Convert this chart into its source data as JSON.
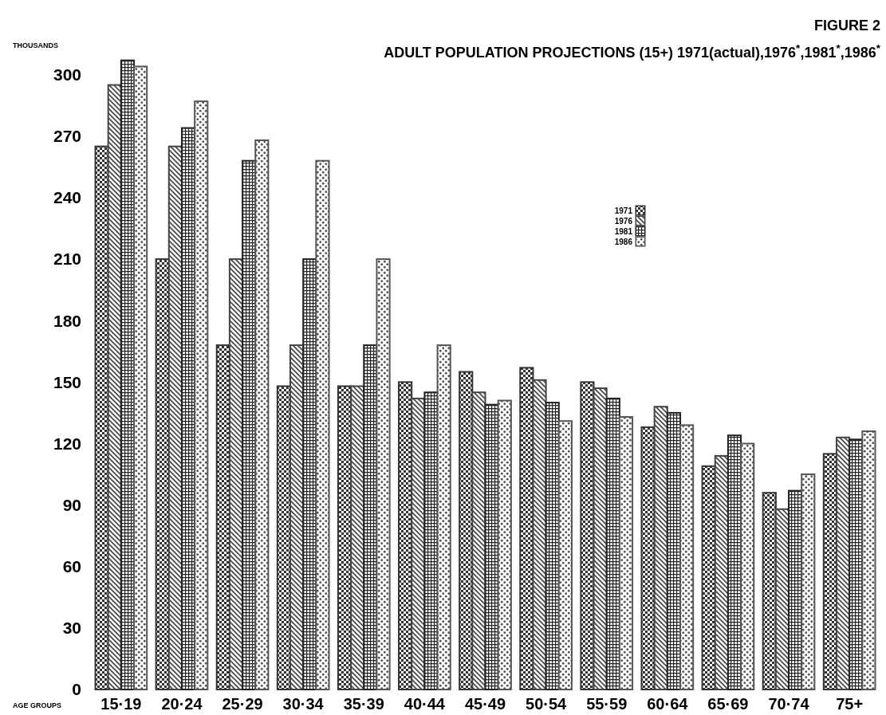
{
  "chart_data": {
    "type": "bar",
    "title": "ADULT POPULATION PROJECTIONS (15+) 1971(actual),1976$^{*}$,1981$^{*}$,1986$^{*}$",
    "subtitle": "FIGURE 2",
    "ylabel": "THOUSANDS",
    "xlabel": "AGE GROUPS",
    "categories": [
      "15·19",
      "20·24",
      "25·29",
      "30·34",
      "35·39",
      "40·44",
      "45·49",
      "50·54",
      "55·59",
      "60·64",
      "65·69",
      "70·74",
      "75+"
    ],
    "series": [
      {
        "name": "1971",
        "color": "#333333",
        "values": [
          265,
          210,
          168,
          148,
          148,
          150,
          155,
          157,
          150,
          128,
          109,
          96,
          115
        ]
      },
      {
        "name": "1976",
        "color": "#444444",
        "values": [
          295,
          265,
          210,
          168,
          148,
          142,
          145,
          151,
          147,
          138,
          114,
          88,
          123
        ]
      },
      {
        "name": "1981",
        "color": "#222222",
        "values": [
          307,
          274,
          258,
          210,
          168,
          145,
          139,
          140,
          142,
          135,
          124,
          97,
          122
        ]
      },
      {
        "name": "1986",
        "color": "#555555",
        "values": [
          304,
          287,
          268,
          258,
          210,
          168,
          141,
          131,
          133,
          129,
          120,
          105,
          126
        ]
      }
    ],
    "ylim": [
      0,
      310
    ],
    "yticks": [
      0,
      30,
      60,
      90,
      120,
      150,
      180,
      210,
      240,
      270,
      300
    ],
    "grid": false,
    "legend": "top right"
  }
}
